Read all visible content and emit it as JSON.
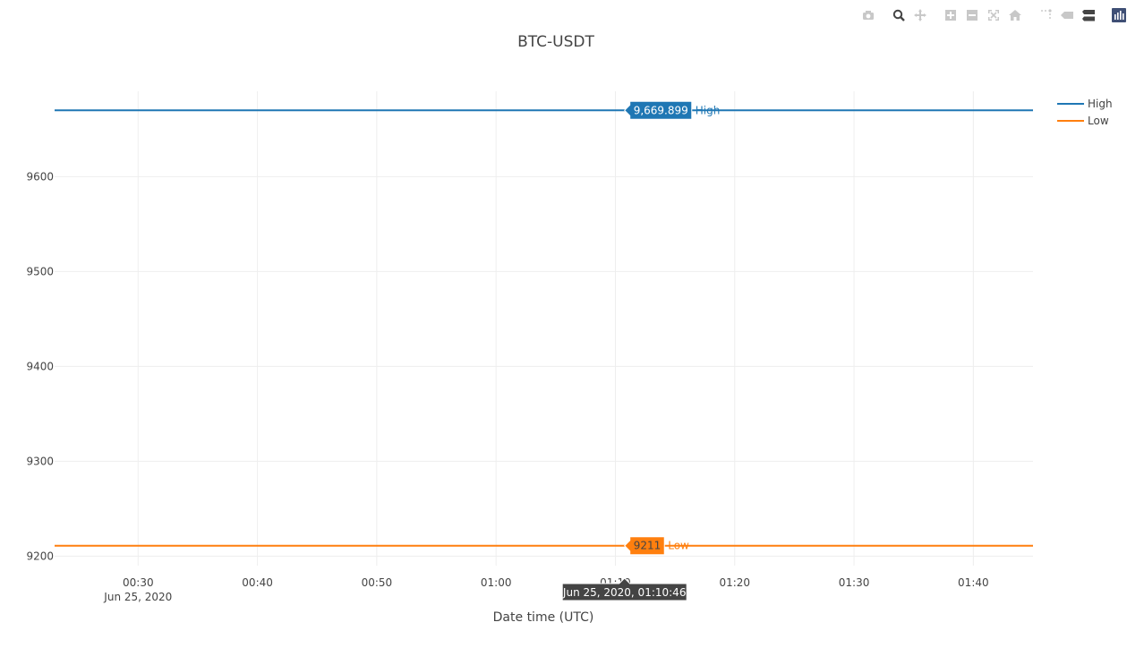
{
  "modebar": {
    "buttons": [
      {
        "name": "camera-icon",
        "title": "Download plot as a png"
      },
      {
        "name": "zoom-icon",
        "title": "Zoom"
      },
      {
        "name": "pan-icon",
        "title": "Pan"
      },
      {
        "name": "zoom-in-icon",
        "title": "Zoom in"
      },
      {
        "name": "zoom-out-icon",
        "title": "Zoom out"
      },
      {
        "name": "autoscale-icon",
        "title": "Autoscale"
      },
      {
        "name": "home-icon",
        "title": "Reset axes"
      },
      {
        "name": "spike-lines-icon",
        "title": "Toggle Spike Lines"
      },
      {
        "name": "hover-closest-icon",
        "title": "Show closest data on hover"
      },
      {
        "name": "hover-compare-icon",
        "title": "Compare data on hover"
      },
      {
        "name": "plotly-logo-icon",
        "title": "Produced with Plotly"
      }
    ],
    "active_color": "#444444",
    "inactive_color": "#c8c8c8",
    "logo_color": "#3f4f75"
  },
  "chart_data": {
    "type": "line",
    "title": "BTC-USDT",
    "xlabel": "Date time (UTC)",
    "ylabel": "",
    "x_ticks": [
      {
        "time": "00:30",
        "date": "Jun 25, 2020"
      },
      {
        "time": "00:40",
        "date": ""
      },
      {
        "time": "00:50",
        "date": ""
      },
      {
        "time": "01:00",
        "date": ""
      },
      {
        "time": "01:10",
        "date": ""
      },
      {
        "time": "01:20",
        "date": ""
      },
      {
        "time": "01:30",
        "date": ""
      },
      {
        "time": "01:40",
        "date": ""
      }
    ],
    "xlim": [
      "2020-06-25 00:23",
      "2020-06-25 01:45"
    ],
    "y_ticks": [
      9200,
      9300,
      9400,
      9500,
      9600
    ],
    "ylim": [
      9190,
      9690
    ],
    "grid": true,
    "legend_position": "top-right",
    "series": [
      {
        "name": "High",
        "color": "#1f77b4",
        "x": [
          "2020-06-25 00:23",
          "2020-06-25 01:45"
        ],
        "values": [
          9669.899,
          9669.899
        ]
      },
      {
        "name": "Low",
        "color": "#ff7f0e",
        "x": [
          "2020-06-25 00:23",
          "2020-06-25 01:45"
        ],
        "values": [
          9211,
          9211
        ]
      }
    ],
    "hover": {
      "x_label": "Jun 25, 2020, 01:10:46",
      "x": "2020-06-25 01:10:46",
      "labels": [
        {
          "series": "High",
          "value_text": "9,669.899",
          "value": 9669.899
        },
        {
          "series": "Low",
          "value_text": "9211",
          "value": 9211
        }
      ]
    }
  }
}
